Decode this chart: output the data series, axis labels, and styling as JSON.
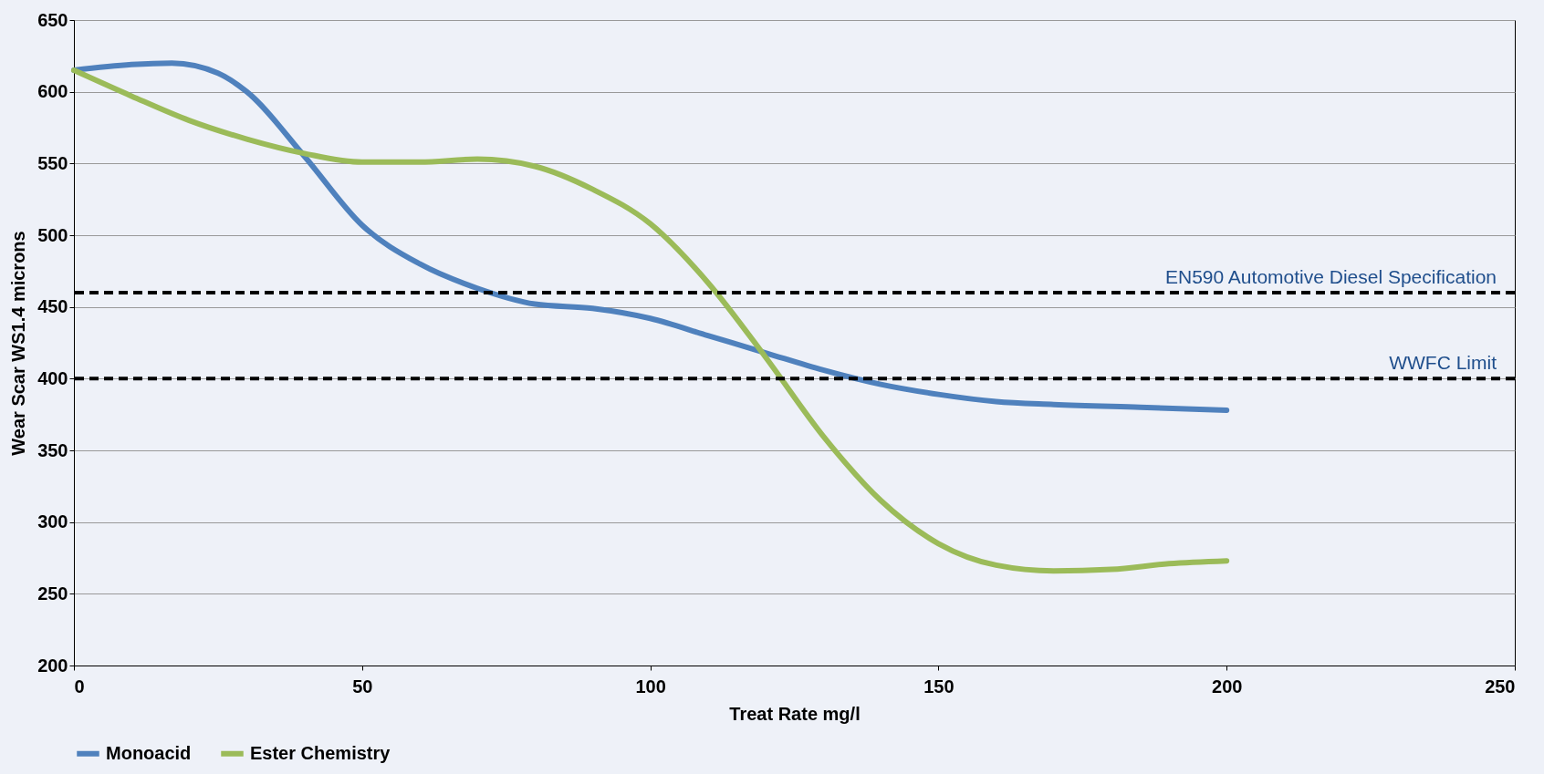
{
  "chart_data": {
    "type": "line",
    "xlabel": "Treat Rate mg/l",
    "ylabel": "Wear Scar WS1.4 microns",
    "xlim": [
      0,
      250
    ],
    "xticks": [
      0,
      50,
      100,
      150,
      200,
      250
    ],
    "ylim": [
      200,
      650
    ],
    "yticks": [
      200,
      250,
      300,
      350,
      400,
      450,
      500,
      550,
      600,
      650
    ],
    "x": [
      0,
      10,
      17,
      25,
      30,
      40,
      50,
      60,
      70,
      80,
      90,
      100,
      110,
      120,
      130,
      140,
      150,
      160,
      170,
      185,
      200
    ],
    "series": [
      {
        "name": "Monoacid",
        "color": "#4f81bd",
        "values": [
          615,
          619,
          620,
          613,
          600,
          555,
          507,
          480,
          463,
          452,
          449,
          442,
          430,
          418,
          406,
          396,
          389,
          384,
          382,
          380,
          378
        ]
      },
      {
        "name": "Ester Chemistry",
        "color": "#9bbb59",
        "x": [
          0,
          10,
          20,
          30,
          40,
          50,
          60,
          70,
          80,
          90,
          100,
          110,
          120,
          130,
          140,
          150,
          160,
          170,
          180,
          190,
          200
        ],
        "values": [
          615,
          597,
          580,
          567,
          557,
          551,
          551,
          553,
          548,
          532,
          508,
          467,
          415,
          360,
          315,
          285,
          270,
          266,
          267,
          271,
          273
        ]
      }
    ],
    "ref_lines": [
      {
        "axis": "y",
        "value": 460,
        "label": "EN590 Automotive Diesel Specification",
        "color": "#000000",
        "line_style": "dashed"
      },
      {
        "axis": "y",
        "value": 400,
        "label": "WWFC Limit",
        "color": "#000000",
        "line_style": "dashed"
      }
    ],
    "grid": "y",
    "legend": "bottom",
    "marker": "none",
    "line_style": "solid"
  }
}
